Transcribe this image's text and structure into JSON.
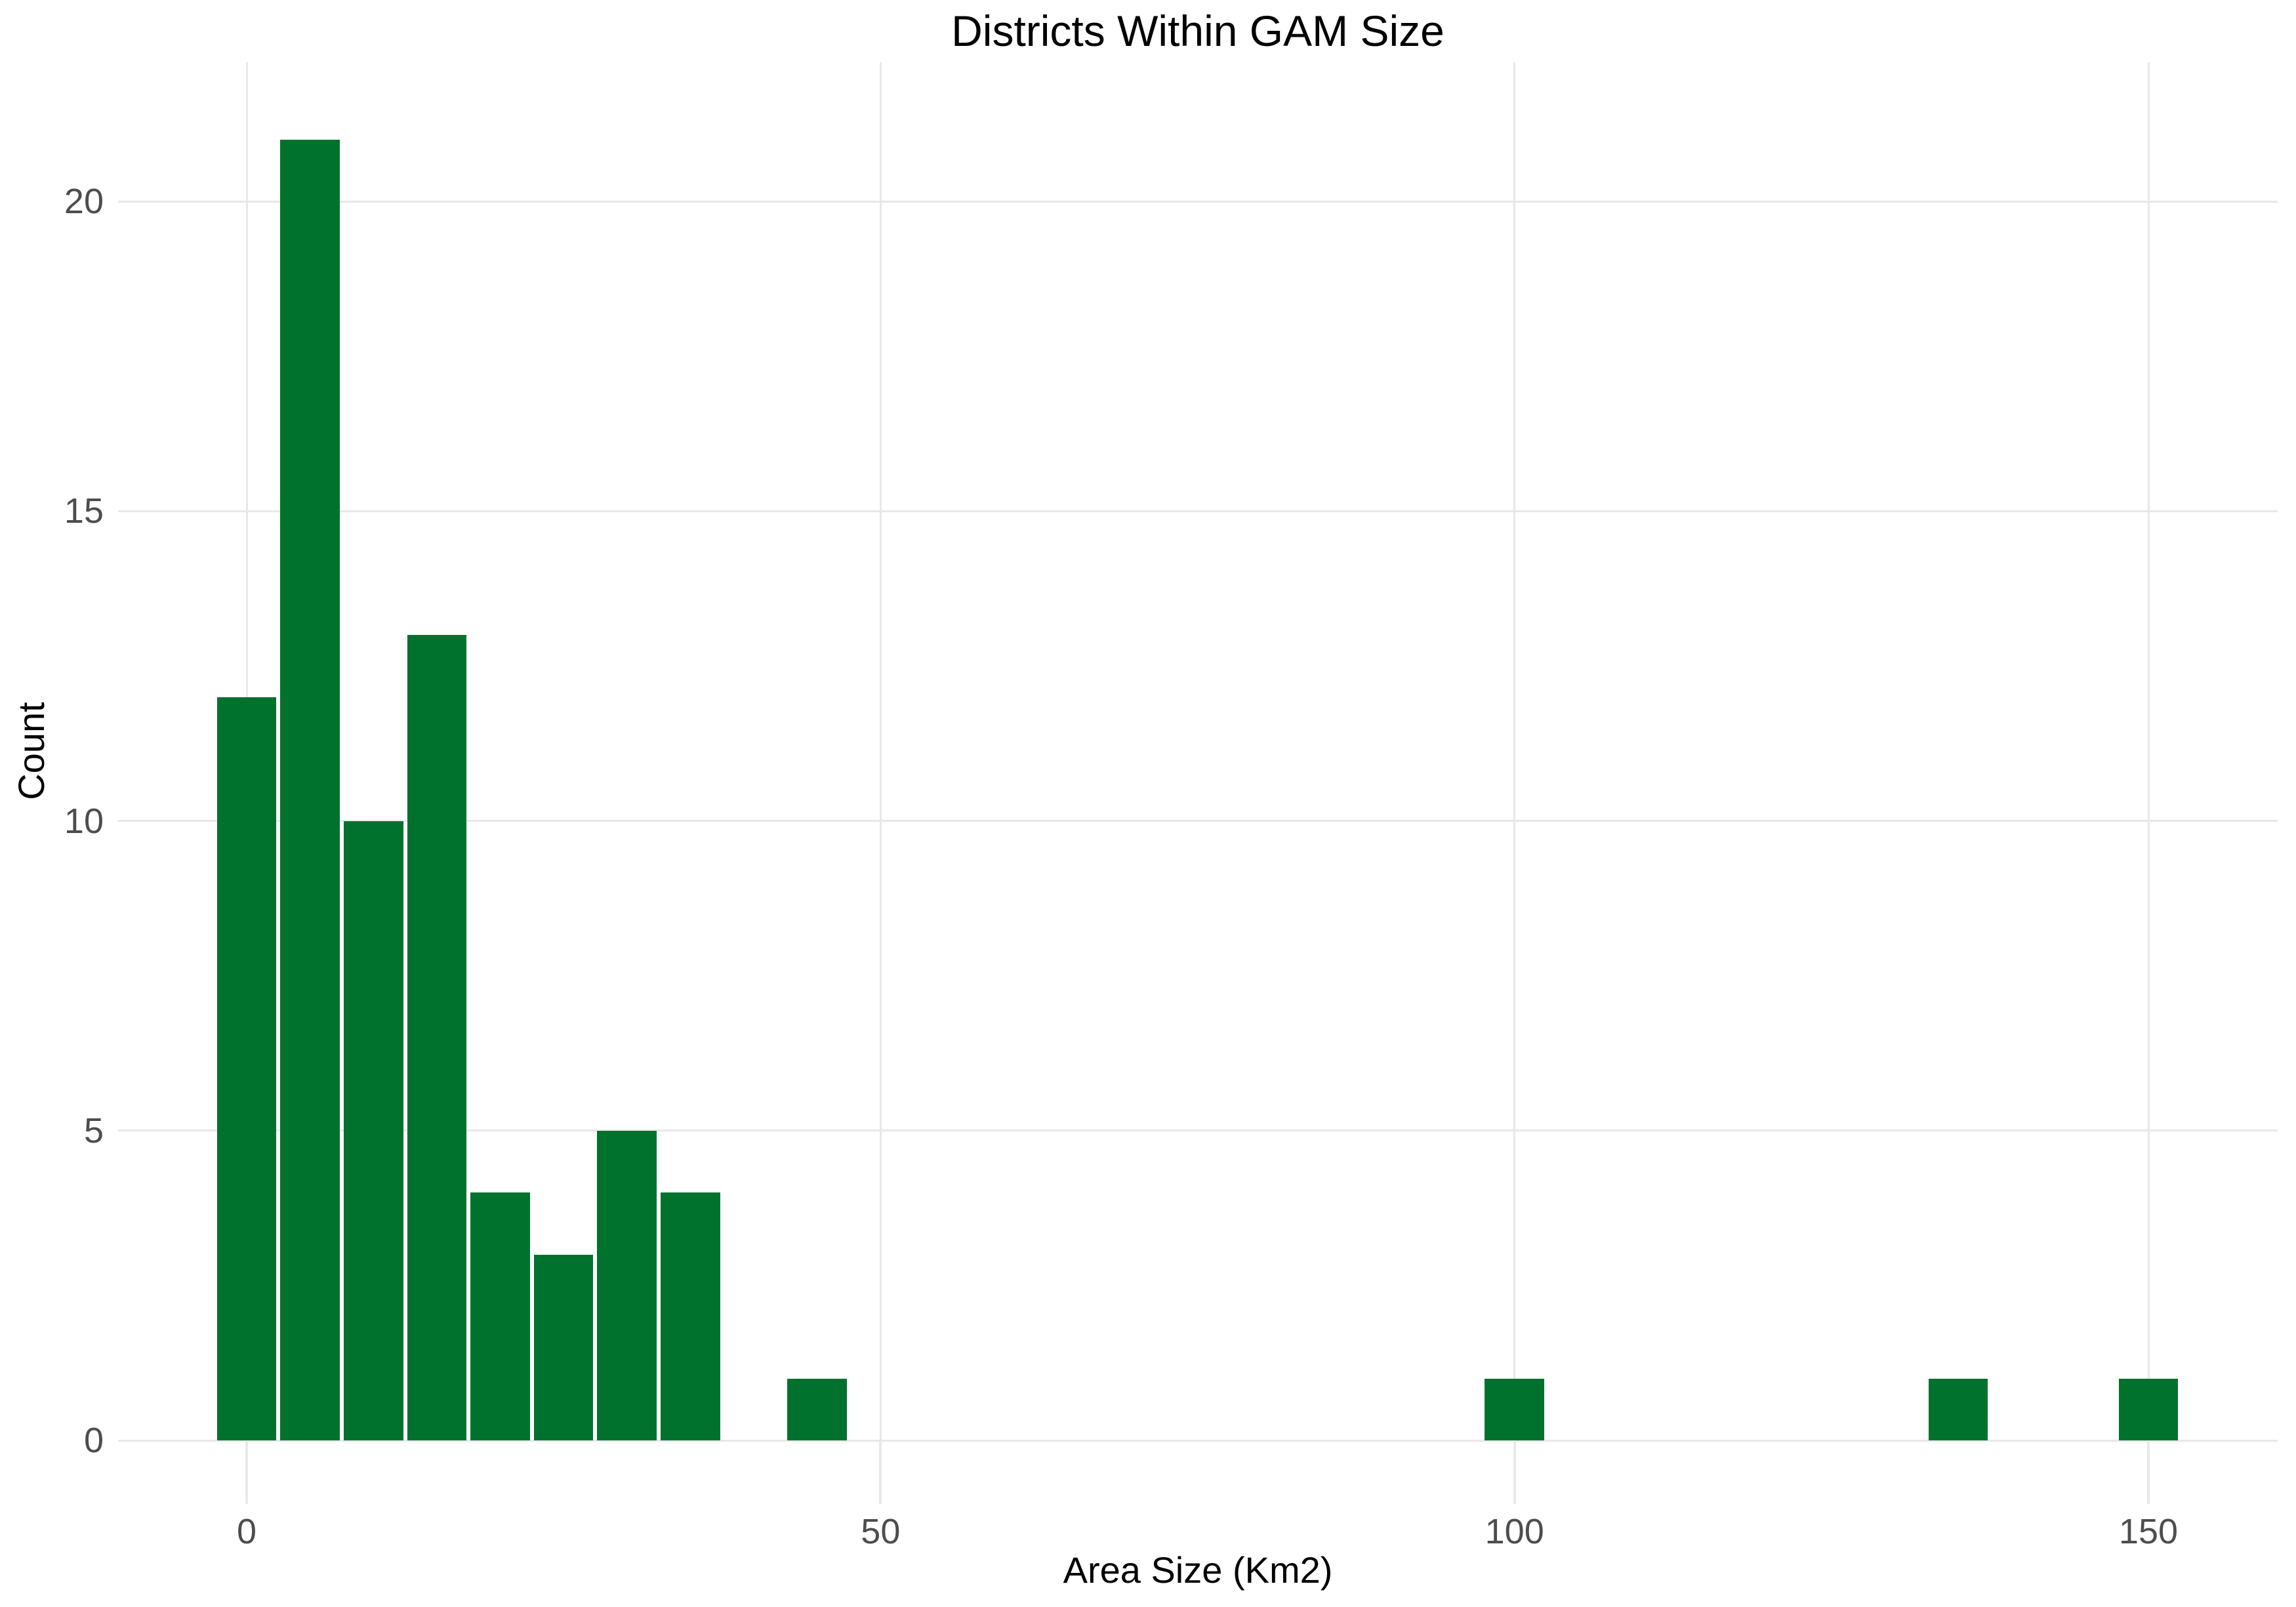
{
  "chart_data": {
    "type": "bar",
    "subtype": "histogram",
    "title": "Districts Within GAM Size",
    "xlabel": "Area Size (Km2)",
    "ylabel": "Count",
    "bin_width": 5,
    "bin_centers": [
      0,
      5,
      10,
      15,
      20,
      25,
      30,
      35,
      45,
      100,
      135,
      150
    ],
    "counts": [
      12,
      21,
      10,
      13,
      4,
      3,
      5,
      4,
      1,
      1,
      1,
      1
    ],
    "x_ticks": [
      0,
      50,
      100,
      150
    ],
    "y_ticks": [
      0,
      5,
      10,
      15,
      20
    ],
    "xlim": [
      -10,
      160
    ],
    "ylim": [
      0,
      22.2
    ],
    "grid": true,
    "legend": false,
    "colors": {
      "bar_fill": "#00722E",
      "bar_separator": "#FFFFFF",
      "grid": "#E8E8E8",
      "axis_tick": "#E8E8E8",
      "tick_label": "#4D4D4D",
      "title_text": "#000000",
      "axis_title_text": "#000000",
      "background": "#FFFFFF"
    }
  }
}
